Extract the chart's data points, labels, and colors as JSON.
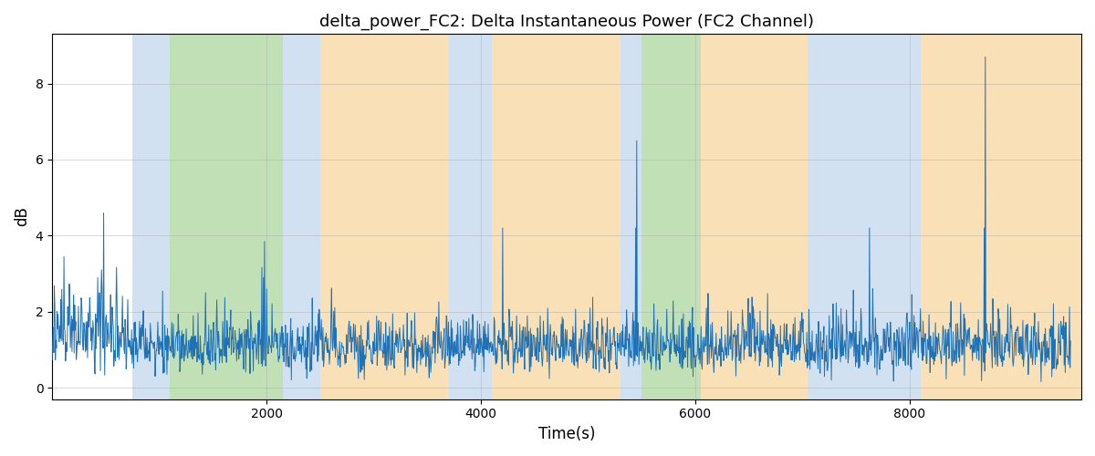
{
  "title": "delta_power_FC2: Delta Instantaneous Power (FC2 Channel)",
  "xlabel": "Time(s)",
  "ylabel": "dB",
  "xlim": [
    0,
    9600
  ],
  "ylim": [
    -0.3,
    9.3
  ],
  "line_color": "#2171b5",
  "line_width": 0.7,
  "background_color": "#ffffff",
  "grid_color": "#aaaaaa",
  "grid_alpha": 0.6,
  "yticks": [
    0,
    2,
    4,
    6,
    8
  ],
  "xticks": [
    2000,
    4000,
    6000,
    8000
  ],
  "colored_bands": [
    {
      "xmin": 750,
      "xmax": 1100,
      "color": "#aec9e6",
      "alpha": 0.55
    },
    {
      "xmin": 1100,
      "xmax": 2150,
      "color": "#90c878",
      "alpha": 0.55
    },
    {
      "xmin": 2150,
      "xmax": 2500,
      "color": "#aec9e6",
      "alpha": 0.55
    },
    {
      "xmin": 2500,
      "xmax": 3700,
      "color": "#f5c87a",
      "alpha": 0.55
    },
    {
      "xmin": 3700,
      "xmax": 4100,
      "color": "#aec9e6",
      "alpha": 0.55
    },
    {
      "xmin": 4100,
      "xmax": 5300,
      "color": "#f5c87a",
      "alpha": 0.55
    },
    {
      "xmin": 5300,
      "xmax": 5500,
      "color": "#aec9e6",
      "alpha": 0.55
    },
    {
      "xmin": 5500,
      "xmax": 6050,
      "color": "#90c878",
      "alpha": 0.55
    },
    {
      "xmin": 6050,
      "xmax": 7050,
      "color": "#f5c87a",
      "alpha": 0.55
    },
    {
      "xmin": 7050,
      "xmax": 8100,
      "color": "#aec9e6",
      "alpha": 0.55
    },
    {
      "xmin": 8100,
      "xmax": 9600,
      "color": "#f5c87a",
      "alpha": 0.55
    }
  ],
  "seed": 12345,
  "n_points": 1900
}
